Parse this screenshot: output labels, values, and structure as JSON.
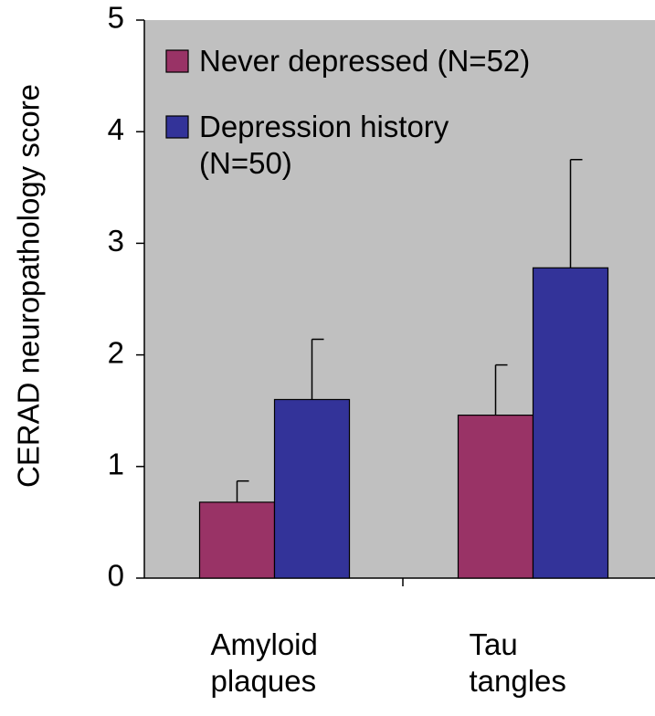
{
  "chart_data": {
    "type": "bar",
    "y_label": "CERAD  neuropathology score",
    "categories": [
      "Amyloid plaques",
      "Tau tangles"
    ],
    "series": [
      {
        "name": "Never depressed (N=52)",
        "color": "#993366",
        "values": [
          0.68,
          1.46
        ],
        "errors": [
          0.19,
          0.45
        ]
      },
      {
        "name": "Depression history (N=50)",
        "color": "#333399",
        "values": [
          1.6,
          2.78
        ],
        "errors": [
          0.54,
          0.97
        ]
      }
    ],
    "ylim": [
      0,
      5
    ],
    "yticks": [
      0,
      1,
      2,
      3,
      4,
      5
    ],
    "legend": "top-left",
    "background": "#c0c0c0"
  }
}
